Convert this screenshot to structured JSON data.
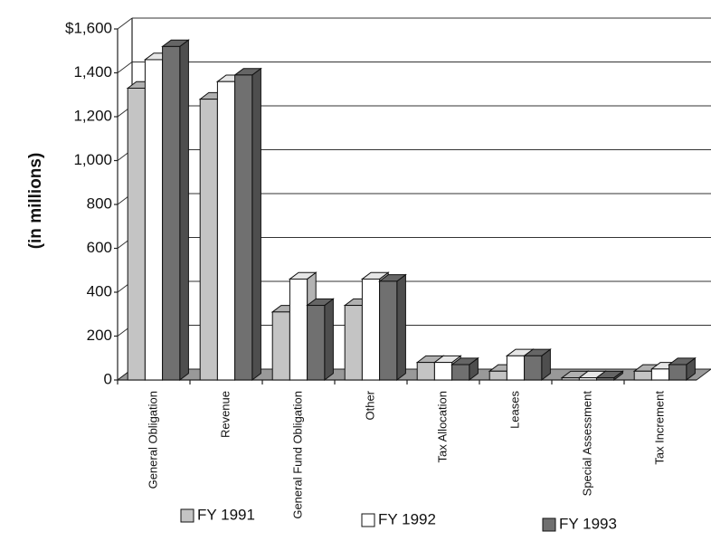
{
  "chart_data": {
    "type": "bar3d",
    "y_label": "(in millions)",
    "categories": [
      "General Obligation",
      "Revenue",
      "General Fund Obligation",
      "Other",
      "Tax Allocation",
      "Leases",
      "Special Assessment",
      "Tax Increment"
    ],
    "series": [
      {
        "name": "FY 1991",
        "color": "#c4c4c4",
        "values": [
          1330,
          1280,
          310,
          340,
          80,
          40,
          10,
          40
        ]
      },
      {
        "name": "FY 1992",
        "color": "#ffffff",
        "values": [
          1460,
          1360,
          460,
          460,
          80,
          110,
          10,
          50
        ]
      },
      {
        "name": "FY 1993",
        "color": "#707070",
        "values": [
          1520,
          1390,
          340,
          450,
          70,
          110,
          10,
          70
        ]
      }
    ],
    "ylim": [
      0,
      1600
    ],
    "yticks": [
      0,
      200,
      400,
      600,
      800,
      {
        "value": 1000,
        "label": "1,000"
      },
      {
        "value": 1200,
        "label": "1,200"
      },
      {
        "value": 1400,
        "label": "1,400"
      },
      {
        "value": 1600,
        "label": "$1,600"
      }
    ],
    "grid": true
  }
}
